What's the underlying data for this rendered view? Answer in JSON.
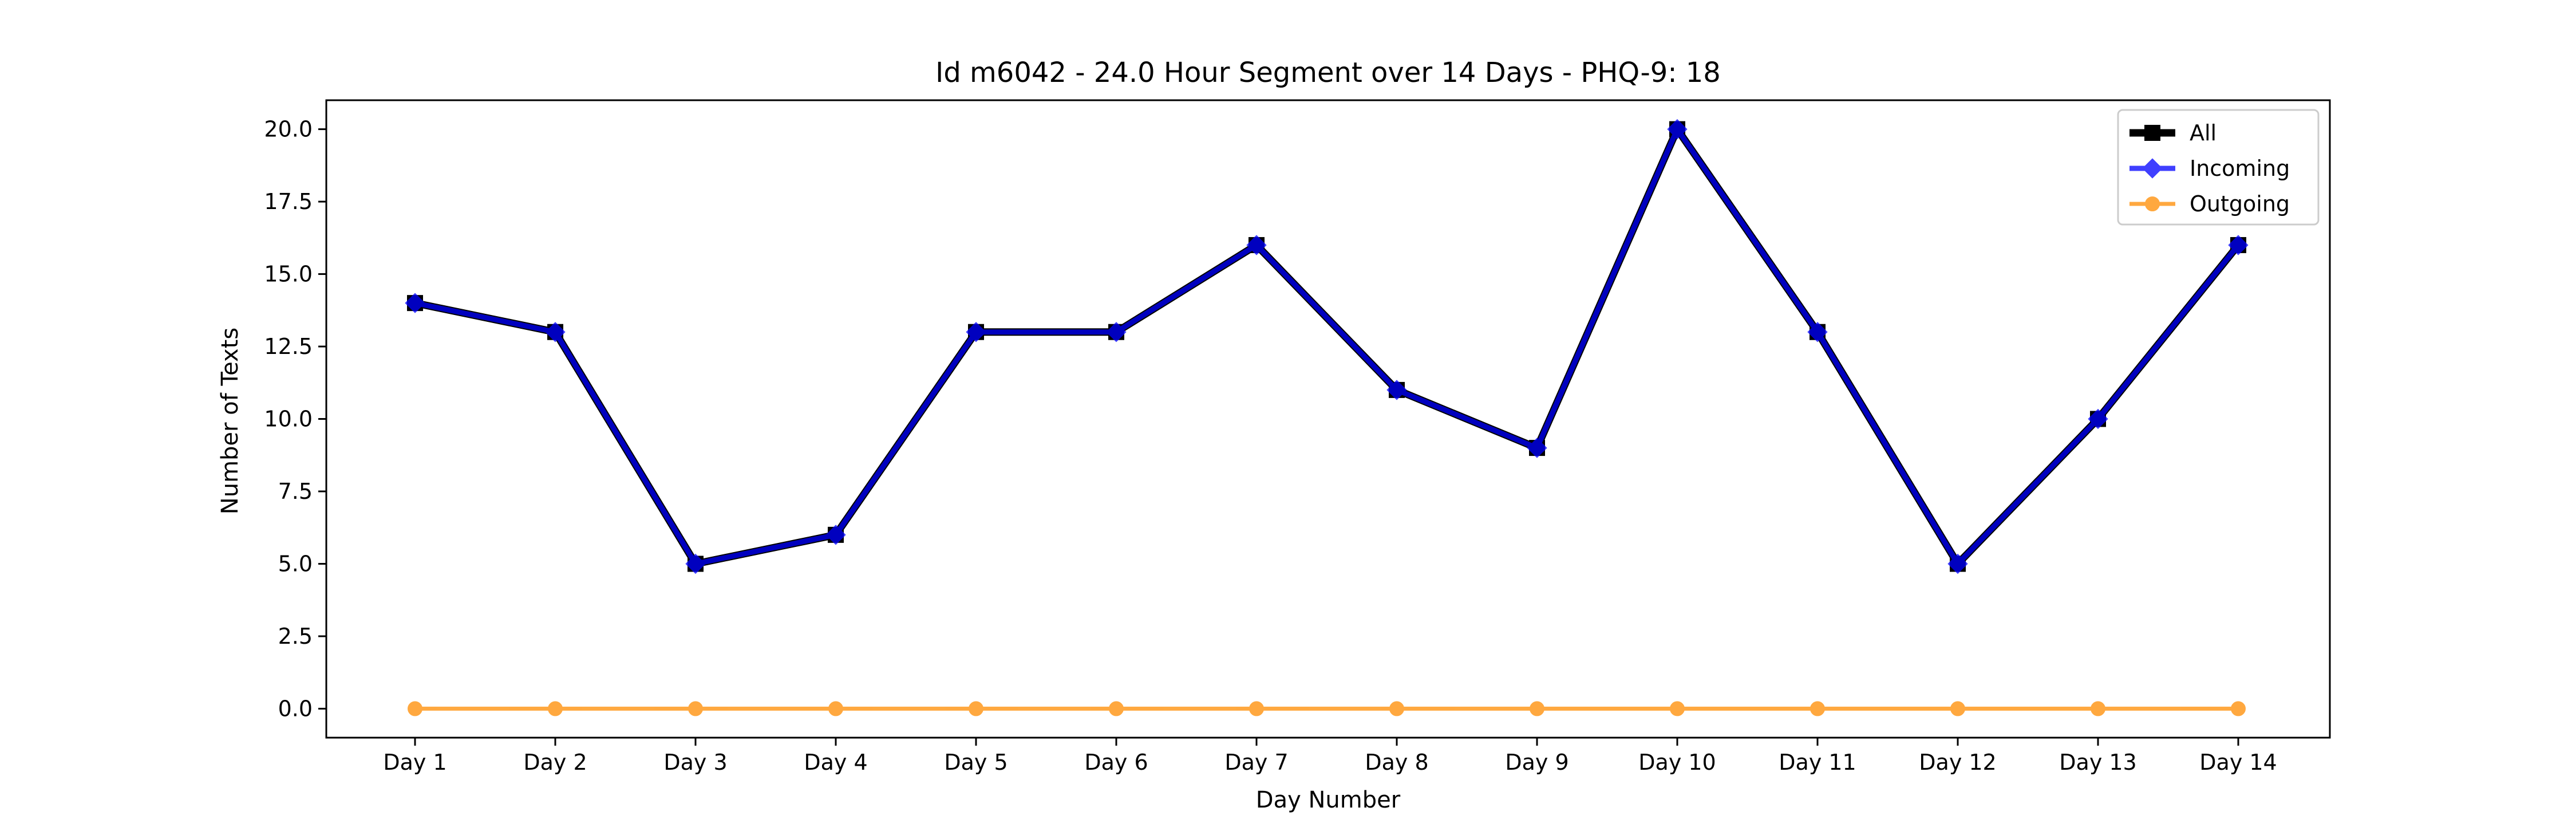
{
  "chart_data": {
    "type": "line",
    "title": "Id m6042 - 24.0 Hour Segment over 14 Days - PHQ-9: 18",
    "xlabel": "Day Number",
    "ylabel": "Number of Texts",
    "categories": [
      "Day 1",
      "Day 2",
      "Day 3",
      "Day 4",
      "Day 5",
      "Day 6",
      "Day 7",
      "Day 8",
      "Day 9",
      "Day 10",
      "Day 11",
      "Day 12",
      "Day 13",
      "Day 14"
    ],
    "ylim": [
      -1.0,
      21.0
    ],
    "yticks": [
      "0.0",
      "2.5",
      "5.0",
      "7.5",
      "10.0",
      "12.5",
      "15.0",
      "17.5",
      "20.0"
    ],
    "ytick_values": [
      0,
      2.5,
      5,
      7.5,
      10,
      12.5,
      15,
      17.5,
      20
    ],
    "grid": false,
    "legend_position": "top-right",
    "series": [
      {
        "name": "All",
        "color": "#000000",
        "marker": "square",
        "values": [
          14,
          13,
          5,
          6,
          13,
          13,
          16,
          11,
          9,
          20,
          13,
          5,
          10,
          16
        ]
      },
      {
        "name": "Incoming",
        "color": "#0000ff",
        "marker": "diamond",
        "values": [
          14,
          13,
          5,
          6,
          13,
          13,
          16,
          11,
          9,
          20,
          13,
          5,
          10,
          16
        ]
      },
      {
        "name": "Outgoing",
        "color": "#ff8c00",
        "marker": "circle",
        "values": [
          0,
          0,
          0,
          0,
          0,
          0,
          0,
          0,
          0,
          0,
          0,
          0,
          0,
          0
        ]
      }
    ]
  }
}
